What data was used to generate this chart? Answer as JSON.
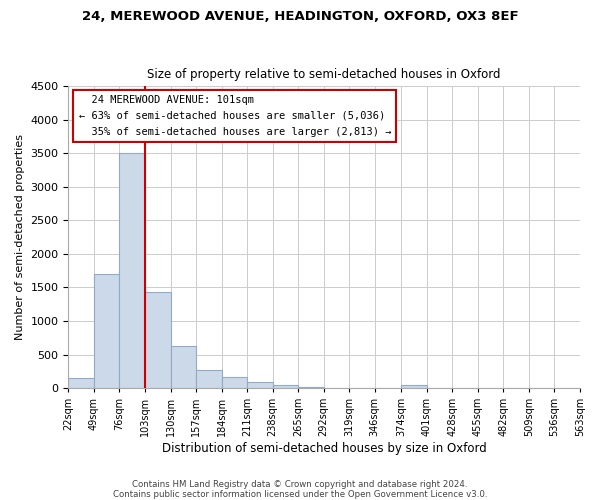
{
  "title1": "24, MEREWOOD AVENUE, HEADINGTON, OXFORD, OX3 8EF",
  "title2": "Size of property relative to semi-detached houses in Oxford",
  "xlabel": "Distribution of semi-detached houses by size in Oxford",
  "ylabel": "Number of semi-detached properties",
  "bar_color": "#ccd9e8",
  "bar_edgecolor": "#90aac8",
  "property_line_color": "#cc0000",
  "property_label": "24 MEREWOOD AVENUE: 101sqm",
  "pct_smaller": 63,
  "count_smaller": "5,036",
  "pct_larger": 35,
  "count_larger": "2,813",
  "bin_edges": [
    22,
    49,
    76,
    103,
    130,
    157,
    184,
    211,
    238,
    265,
    292,
    319,
    346,
    374,
    401,
    428,
    455,
    482,
    509,
    536,
    563
  ],
  "bin_heights": [
    150,
    1700,
    3500,
    1430,
    620,
    270,
    160,
    85,
    40,
    12,
    5,
    3,
    2,
    40,
    5,
    5,
    4,
    3,
    3,
    3
  ],
  "tick_labels": [
    "22sqm",
    "49sqm",
    "76sqm",
    "103sqm",
    "130sqm",
    "157sqm",
    "184sqm",
    "211sqm",
    "238sqm",
    "265sqm",
    "292sqm",
    "319sqm",
    "346sqm",
    "374sqm",
    "401sqm",
    "428sqm",
    "455sqm",
    "482sqm",
    "509sqm",
    "536sqm",
    "563sqm"
  ],
  "ylim": [
    0,
    4500
  ],
  "yticks": [
    0,
    500,
    1000,
    1500,
    2000,
    2500,
    3000,
    3500,
    4000,
    4500
  ],
  "footnote1": "Contains HM Land Registry data © Crown copyright and database right 2024.",
  "footnote2": "Contains public sector information licensed under the Open Government Licence v3.0.",
  "annotation_box_color": "#ffffff",
  "annotation_box_edgecolor": "#cc0000",
  "background_color": "#ffffff",
  "grid_color": "#cccccc"
}
